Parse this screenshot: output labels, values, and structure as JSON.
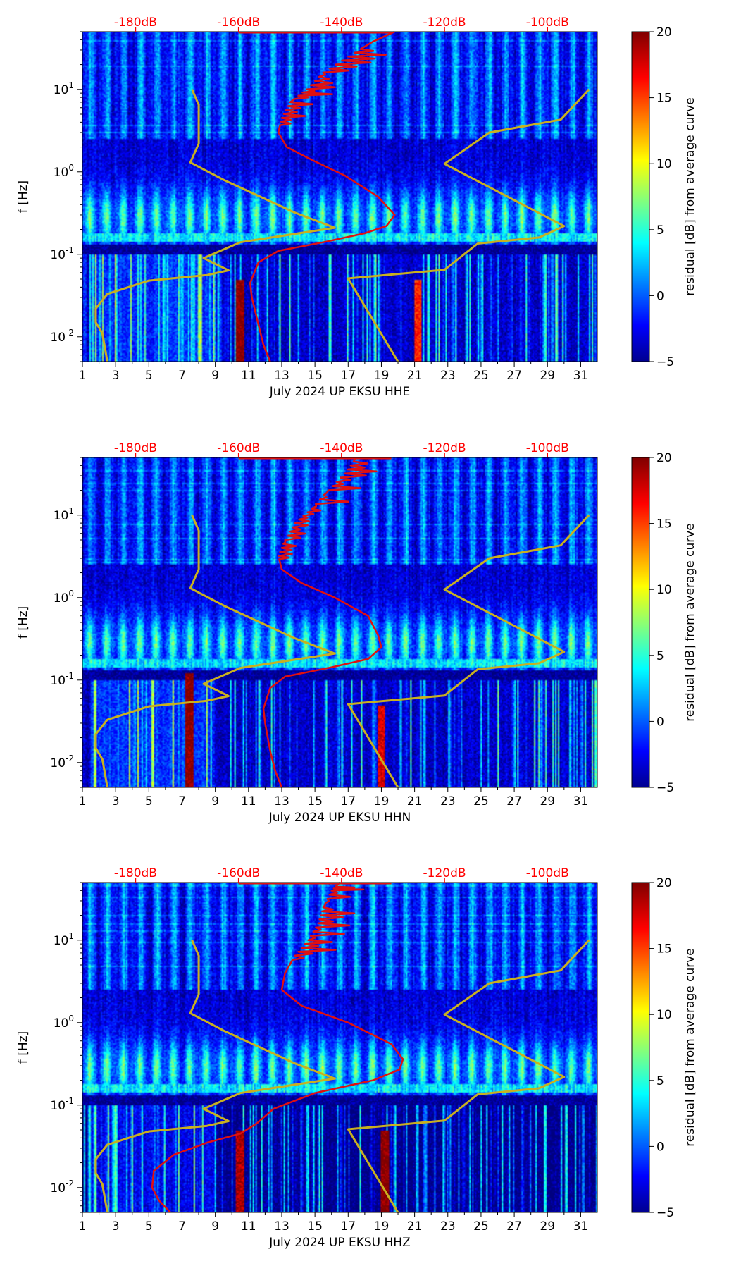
{
  "figure": {
    "background": "#ffffff"
  },
  "chart_data": [
    {
      "type": "heatmap",
      "panel": "HHE",
      "xlabel": "July 2024 UP EKSU  HHE",
      "ylabel": "f [Hz]",
      "xlim": [
        1,
        32
      ],
      "ylim": [
        0.005,
        50
      ],
      "yscale": "log",
      "x_ticks": [
        "1",
        "3",
        "5",
        "7",
        "9",
        "11",
        "13",
        "15",
        "17",
        "19",
        "21",
        "23",
        "25",
        "27",
        "29",
        "31"
      ],
      "y_ticks": [
        {
          "label_base": "10",
          "label_exp": "-2",
          "value": 0.01
        },
        {
          "label_base": "10",
          "label_exp": "-1",
          "value": 0.1
        },
        {
          "label_base": "10",
          "label_exp": "0",
          "value": 1
        },
        {
          "label_base": "10",
          "label_exp": "1",
          "value": 10
        }
      ],
      "top_axis": {
        "color": "#ff0000",
        "labels": [
          "-180dB",
          "-160dB",
          "-140dB",
          "-120dB",
          "-100dB"
        ],
        "label_days": [
          4.2,
          10.4,
          16.6,
          22.8,
          29.0
        ]
      },
      "colorbar": {
        "label": "residual [dB] from average curve",
        "range": [
          -5,
          20
        ],
        "ticks": [
          "20",
          "15",
          "10",
          "5",
          "0",
          "−5"
        ],
        "tick_values": [
          20,
          15,
          10,
          5,
          0,
          -5
        ]
      },
      "yellow_model_curve": {
        "color": "#c8b020",
        "left": [
          [
            2.5,
            0.005
          ],
          [
            2.2,
            0.011
          ],
          [
            1.8,
            0.015
          ],
          [
            1.8,
            0.022
          ],
          [
            2.5,
            0.033
          ],
          [
            5.0,
            0.048
          ],
          [
            8.5,
            0.056
          ],
          [
            9.8,
            0.064
          ],
          [
            8.3,
            0.09
          ],
          [
            10.5,
            0.14
          ],
          [
            16.2,
            0.21
          ],
          [
            13.8,
            0.32
          ],
          [
            9.5,
            0.8
          ],
          [
            7.5,
            1.3
          ],
          [
            8.0,
            2.2
          ],
          [
            8.0,
            6.5
          ],
          [
            7.6,
            10.0
          ]
        ],
        "right": [
          [
            20.0,
            0.005
          ],
          [
            17.0,
            0.051
          ],
          [
            22.8,
            0.065
          ],
          [
            24.8,
            0.135
          ],
          [
            28.5,
            0.16
          ],
          [
            30.0,
            0.22
          ],
          [
            22.8,
            1.25
          ],
          [
            25.5,
            3.0
          ],
          [
            29.8,
            4.3
          ],
          [
            31.5,
            10.0
          ]
        ]
      },
      "red_average_curve": {
        "color": "#e01010",
        "points": [
          [
            12.3,
            0.005
          ],
          [
            11.9,
            0.008
          ],
          [
            11.6,
            0.014
          ],
          [
            11.2,
            0.03
          ],
          [
            11.1,
            0.045
          ],
          [
            11.6,
            0.08
          ],
          [
            12.8,
            0.11
          ],
          [
            15.5,
            0.14
          ],
          [
            18.0,
            0.18
          ],
          [
            19.3,
            0.22
          ],
          [
            19.8,
            0.3
          ],
          [
            18.8,
            0.5
          ],
          [
            16.8,
            0.9
          ],
          [
            14.8,
            1.4
          ],
          [
            13.3,
            2.0
          ],
          [
            12.8,
            3.0
          ],
          [
            13.0,
            4.5
          ],
          [
            13.5,
            7.0
          ],
          [
            14.5,
            10.0
          ],
          [
            15.5,
            16.0
          ],
          [
            17.0,
            25.0
          ],
          [
            18.5,
            38.0
          ],
          [
            19.8,
            50.0
          ]
        ],
        "spike_band": [
          3.5,
          30.0
        ]
      },
      "vertical_bands": [
        {
          "day": 10.5,
          "strength": 1.0,
          "fmax": 0.05
        },
        {
          "day": 21.2,
          "strength": 0.35,
          "fmax": 0.05
        }
      ]
    },
    {
      "type": "heatmap",
      "panel": "HHN",
      "xlabel": "July 2024 UP EKSU  HHN",
      "ylabel": "f [Hz]",
      "xlim": [
        1,
        32
      ],
      "ylim": [
        0.005,
        50
      ],
      "yscale": "log",
      "x_ticks": [
        "1",
        "3",
        "5",
        "7",
        "9",
        "11",
        "13",
        "15",
        "17",
        "19",
        "21",
        "23",
        "25",
        "27",
        "29",
        "31"
      ],
      "y_ticks": [
        {
          "label_base": "10",
          "label_exp": "-2",
          "value": 0.01
        },
        {
          "label_base": "10",
          "label_exp": "-1",
          "value": 0.1
        },
        {
          "label_base": "10",
          "label_exp": "0",
          "value": 1
        },
        {
          "label_base": "10",
          "label_exp": "1",
          "value": 10
        }
      ],
      "top_axis": {
        "color": "#ff0000",
        "labels": [
          "-180dB",
          "-160dB",
          "-140dB",
          "-120dB",
          "-100dB"
        ],
        "label_days": [
          4.2,
          10.4,
          16.6,
          22.8,
          29.0
        ]
      },
      "colorbar": {
        "label": "residual [dB] from average curve",
        "range": [
          -5,
          20
        ],
        "ticks": [
          "20",
          "15",
          "10",
          "5",
          "0",
          "−5"
        ],
        "tick_values": [
          20,
          15,
          10,
          5,
          0,
          -5
        ]
      },
      "yellow_model_curve": {
        "color": "#c8b020",
        "left": [
          [
            2.5,
            0.005
          ],
          [
            2.2,
            0.011
          ],
          [
            1.8,
            0.015
          ],
          [
            1.8,
            0.022
          ],
          [
            2.5,
            0.033
          ],
          [
            5.0,
            0.048
          ],
          [
            8.5,
            0.056
          ],
          [
            9.8,
            0.064
          ],
          [
            8.3,
            0.09
          ],
          [
            10.5,
            0.14
          ],
          [
            16.2,
            0.21
          ],
          [
            13.8,
            0.32
          ],
          [
            9.5,
            0.8
          ],
          [
            7.5,
            1.3
          ],
          [
            8.0,
            2.2
          ],
          [
            8.0,
            6.5
          ],
          [
            7.6,
            10.0
          ]
        ],
        "right": [
          [
            20.0,
            0.005
          ],
          [
            17.0,
            0.051
          ],
          [
            22.8,
            0.065
          ],
          [
            24.8,
            0.135
          ],
          [
            28.5,
            0.16
          ],
          [
            30.0,
            0.22
          ],
          [
            22.8,
            1.25
          ],
          [
            25.5,
            3.0
          ],
          [
            29.8,
            4.3
          ],
          [
            31.5,
            10.0
          ]
        ]
      },
      "red_average_curve": {
        "color": "#e01010",
        "points": [
          [
            13.0,
            0.005
          ],
          [
            12.6,
            0.008
          ],
          [
            12.3,
            0.014
          ],
          [
            12.0,
            0.03
          ],
          [
            11.9,
            0.045
          ],
          [
            12.3,
            0.08
          ],
          [
            13.2,
            0.11
          ],
          [
            15.8,
            0.14
          ],
          [
            18.2,
            0.18
          ],
          [
            19.0,
            0.25
          ],
          [
            18.8,
            0.35
          ],
          [
            18.2,
            0.6
          ],
          [
            16.2,
            1.0
          ],
          [
            14.2,
            1.5
          ],
          [
            13.0,
            2.2
          ],
          [
            12.8,
            3.2
          ],
          [
            13.2,
            5.0
          ],
          [
            13.8,
            8.0
          ],
          [
            14.8,
            12.0
          ],
          [
            15.8,
            20.0
          ],
          [
            16.8,
            32.0
          ],
          [
            17.5,
            50.0
          ]
        ],
        "spike_band": [
          3.0,
          45.0
        ]
      },
      "vertical_bands": [
        {
          "day": 7.4,
          "strength": 1.0,
          "fmax": 0.12
        },
        {
          "day": 19.0,
          "strength": 0.6,
          "fmax": 0.05
        }
      ]
    },
    {
      "type": "heatmap",
      "panel": "HHZ",
      "xlabel": "July 2024 UP EKSU  HHZ",
      "ylabel": "f [Hz]",
      "xlim": [
        1,
        32
      ],
      "ylim": [
        0.005,
        50
      ],
      "yscale": "log",
      "x_ticks": [
        "1",
        "3",
        "5",
        "7",
        "9",
        "11",
        "13",
        "15",
        "17",
        "19",
        "21",
        "23",
        "25",
        "27",
        "29",
        "31"
      ],
      "y_ticks": [
        {
          "label_base": "10",
          "label_exp": "-2",
          "value": 0.01
        },
        {
          "label_base": "10",
          "label_exp": "-1",
          "value": 0.1
        },
        {
          "label_base": "10",
          "label_exp": "0",
          "value": 1
        },
        {
          "label_base": "10",
          "label_exp": "1",
          "value": 10
        }
      ],
      "top_axis": {
        "color": "#ff0000",
        "labels": [
          "-180dB",
          "-160dB",
          "-140dB",
          "-120dB",
          "-100dB"
        ],
        "label_days": [
          4.2,
          10.4,
          16.6,
          22.8,
          29.0
        ]
      },
      "colorbar": {
        "label": "residual [dB] from average curve",
        "range": [
          -5,
          20
        ],
        "ticks": [
          "20",
          "15",
          "10",
          "5",
          "0",
          "−5"
        ],
        "tick_values": [
          20,
          15,
          10,
          5,
          0,
          -5
        ]
      },
      "yellow_model_curve": {
        "color": "#c8b020",
        "left": [
          [
            2.5,
            0.005
          ],
          [
            2.2,
            0.011
          ],
          [
            1.8,
            0.015
          ],
          [
            1.8,
            0.022
          ],
          [
            2.5,
            0.033
          ],
          [
            5.0,
            0.048
          ],
          [
            8.5,
            0.056
          ],
          [
            9.8,
            0.064
          ],
          [
            8.3,
            0.09
          ],
          [
            10.5,
            0.14
          ],
          [
            16.2,
            0.21
          ],
          [
            13.8,
            0.32
          ],
          [
            9.5,
            0.8
          ],
          [
            7.5,
            1.3
          ],
          [
            8.0,
            2.2
          ],
          [
            8.0,
            6.5
          ],
          [
            7.6,
            10.0
          ]
        ],
        "right": [
          [
            20.0,
            0.005
          ],
          [
            17.0,
            0.051
          ],
          [
            22.8,
            0.065
          ],
          [
            24.8,
            0.135
          ],
          [
            28.5,
            0.16
          ],
          [
            30.0,
            0.22
          ],
          [
            22.8,
            1.25
          ],
          [
            25.5,
            3.0
          ],
          [
            29.8,
            4.3
          ],
          [
            31.5,
            10.0
          ]
        ]
      },
      "red_average_curve": {
        "color": "#e01010",
        "points": [
          [
            6.3,
            0.005
          ],
          [
            5.6,
            0.007
          ],
          [
            5.2,
            0.01
          ],
          [
            5.3,
            0.016
          ],
          [
            6.5,
            0.025
          ],
          [
            8.5,
            0.035
          ],
          [
            10.5,
            0.045
          ],
          [
            11.5,
            0.06
          ],
          [
            12.5,
            0.09
          ],
          [
            15.0,
            0.14
          ],
          [
            18.5,
            0.2
          ],
          [
            20.1,
            0.27
          ],
          [
            20.3,
            0.36
          ],
          [
            19.6,
            0.55
          ],
          [
            17.0,
            1.0
          ],
          [
            14.2,
            1.6
          ],
          [
            13.0,
            2.5
          ],
          [
            13.2,
            4.0
          ],
          [
            13.8,
            6.5
          ],
          [
            14.6,
            10.0
          ],
          [
            15.2,
            16.0
          ],
          [
            15.5,
            25.0
          ],
          [
            16.0,
            40.0
          ],
          [
            16.5,
            50.0
          ]
        ],
        "spike_band": [
          6.0,
          45.0
        ]
      },
      "vertical_bands": [
        {
          "day": 10.5,
          "strength": 0.8,
          "fmax": 0.05
        },
        {
          "day": 19.2,
          "strength": 1.0,
          "fmax": 0.05
        }
      ]
    }
  ]
}
